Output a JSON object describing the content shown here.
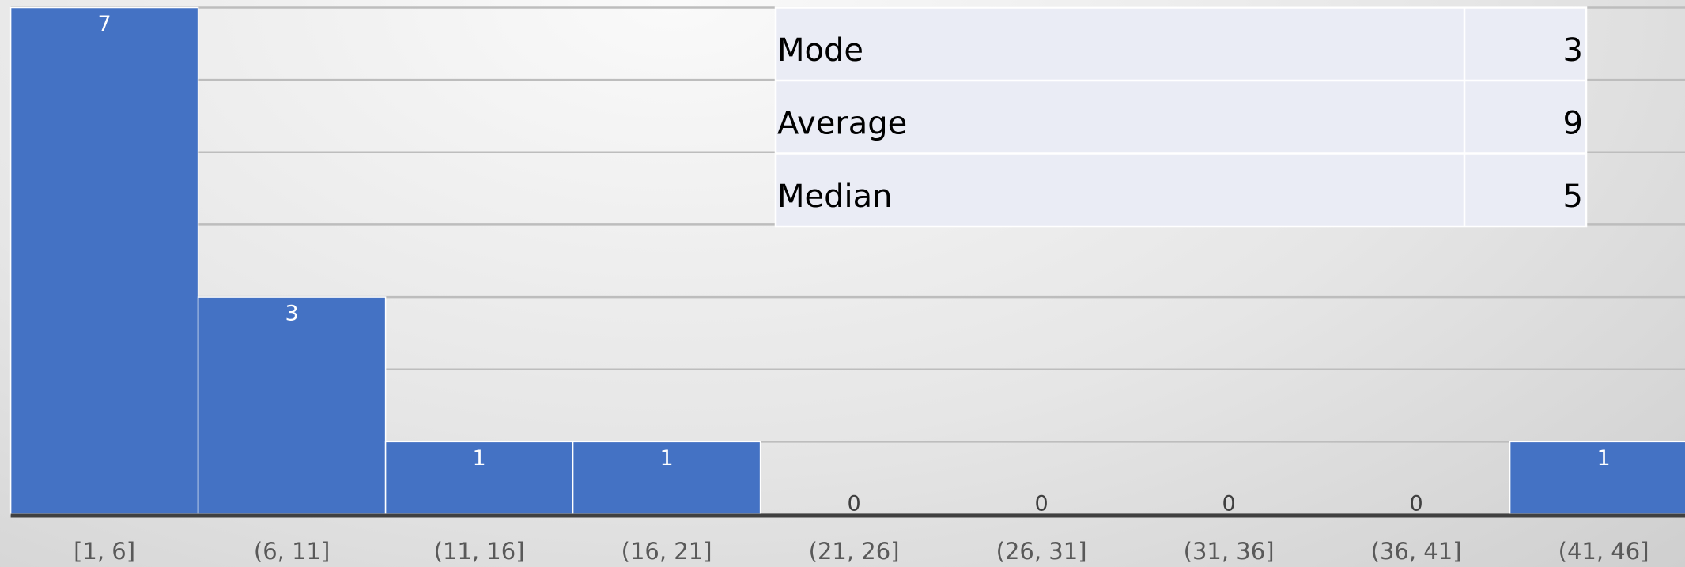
{
  "chart_data": {
    "type": "bar",
    "categories": [
      "[1, 6]",
      "(6, 11]",
      "(11, 16]",
      "(16, 21]",
      "(21, 26]",
      "(26, 31]",
      "(31, 36]",
      "(36, 41]",
      "(41, 46]"
    ],
    "values": [
      7,
      3,
      1,
      1,
      0,
      0,
      0,
      0,
      1
    ],
    "color": "#4472c4",
    "ylim": [
      0,
      7
    ],
    "yticks": [
      0,
      1,
      2,
      3,
      4,
      5,
      6,
      7
    ],
    "grid": true
  },
  "table": {
    "rows": [
      [
        "Mode",
        3
      ],
      [
        "Average",
        9
      ],
      [
        "Median",
        5
      ]
    ]
  }
}
